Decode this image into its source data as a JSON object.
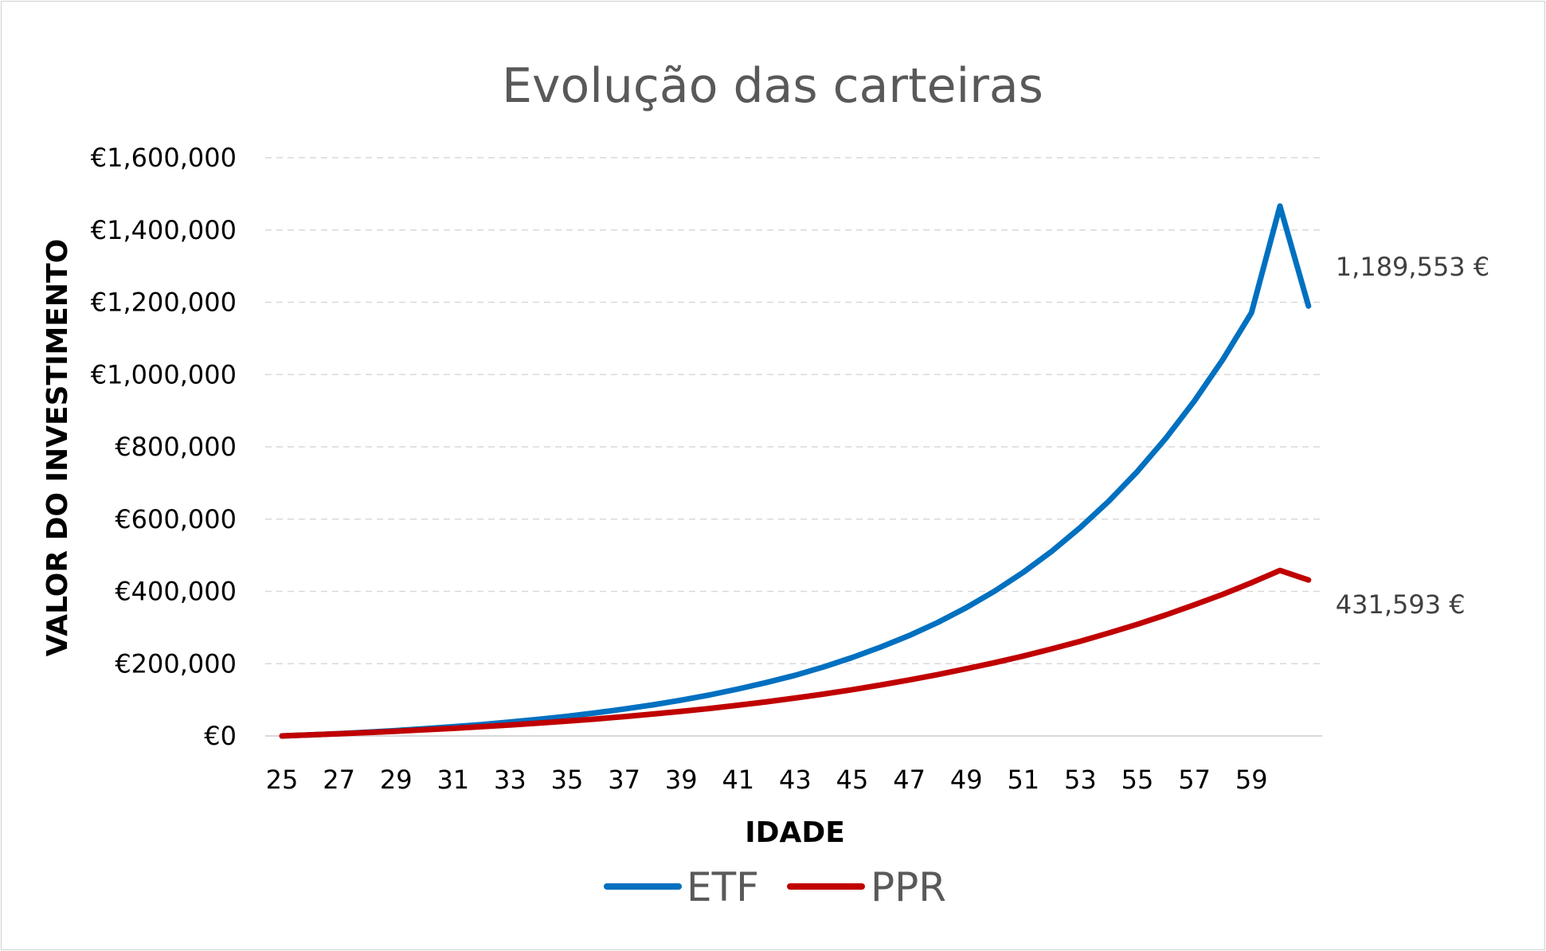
{
  "chart_data": {
    "type": "line",
    "title": "Evolução das carteiras",
    "xlabel": "IDADE",
    "ylabel": "VALOR DO INVESTIMENTO",
    "x": [
      25,
      26,
      27,
      28,
      29,
      30,
      31,
      32,
      33,
      34,
      35,
      36,
      37,
      38,
      39,
      40,
      41,
      42,
      43,
      44,
      45,
      46,
      47,
      48,
      49,
      50,
      51,
      52,
      53,
      54,
      55,
      56,
      57,
      58,
      59,
      60,
      61
    ],
    "x_tick_labels": [
      "25",
      "27",
      "29",
      "31",
      "33",
      "35",
      "37",
      "39",
      "41",
      "43",
      "45",
      "47",
      "49",
      "51",
      "53",
      "55",
      "57",
      "59"
    ],
    "y_tick_labels": [
      "€0",
      "€200,000",
      "€400,000",
      "€600,000",
      "€800,000",
      "€1,000,000",
      "€1,200,000",
      "€1,400,000",
      "€1,600,000"
    ],
    "ylim": [
      0,
      1600000
    ],
    "grid": true,
    "legend_position": "bottom",
    "series": [
      {
        "name": "ETF",
        "color": "#0070C0",
        "values": [
          0,
          3000,
          6500,
          10500,
          15000,
          20000,
          25500,
          31500,
          38500,
          46000,
          54500,
          64000,
          74500,
          86000,
          99000,
          113500,
          130000,
          148000,
          168000,
          191000,
          217000,
          246000,
          278000,
          314000,
          355000,
          401000,
          453000,
          511000,
          577000,
          650000,
          732000,
          824000,
          927000,
          1042000,
          1171000,
          1466000,
          1189553
        ],
        "end_label": "1,189,553 €"
      },
      {
        "name": "PPR",
        "color": "#C00000",
        "values": [
          0,
          3000,
          6000,
          9500,
          13000,
          17000,
          21000,
          25500,
          30500,
          35500,
          41000,
          47000,
          53500,
          60500,
          68000,
          76000,
          85000,
          94500,
          105000,
          116000,
          128000,
          141000,
          155000,
          170000,
          186000,
          203000,
          221000,
          241000,
          262000,
          285000,
          309000,
          335000,
          363000,
          392000,
          424000,
          458000,
          431593
        ],
        "end_label": "431,593 €"
      }
    ]
  }
}
